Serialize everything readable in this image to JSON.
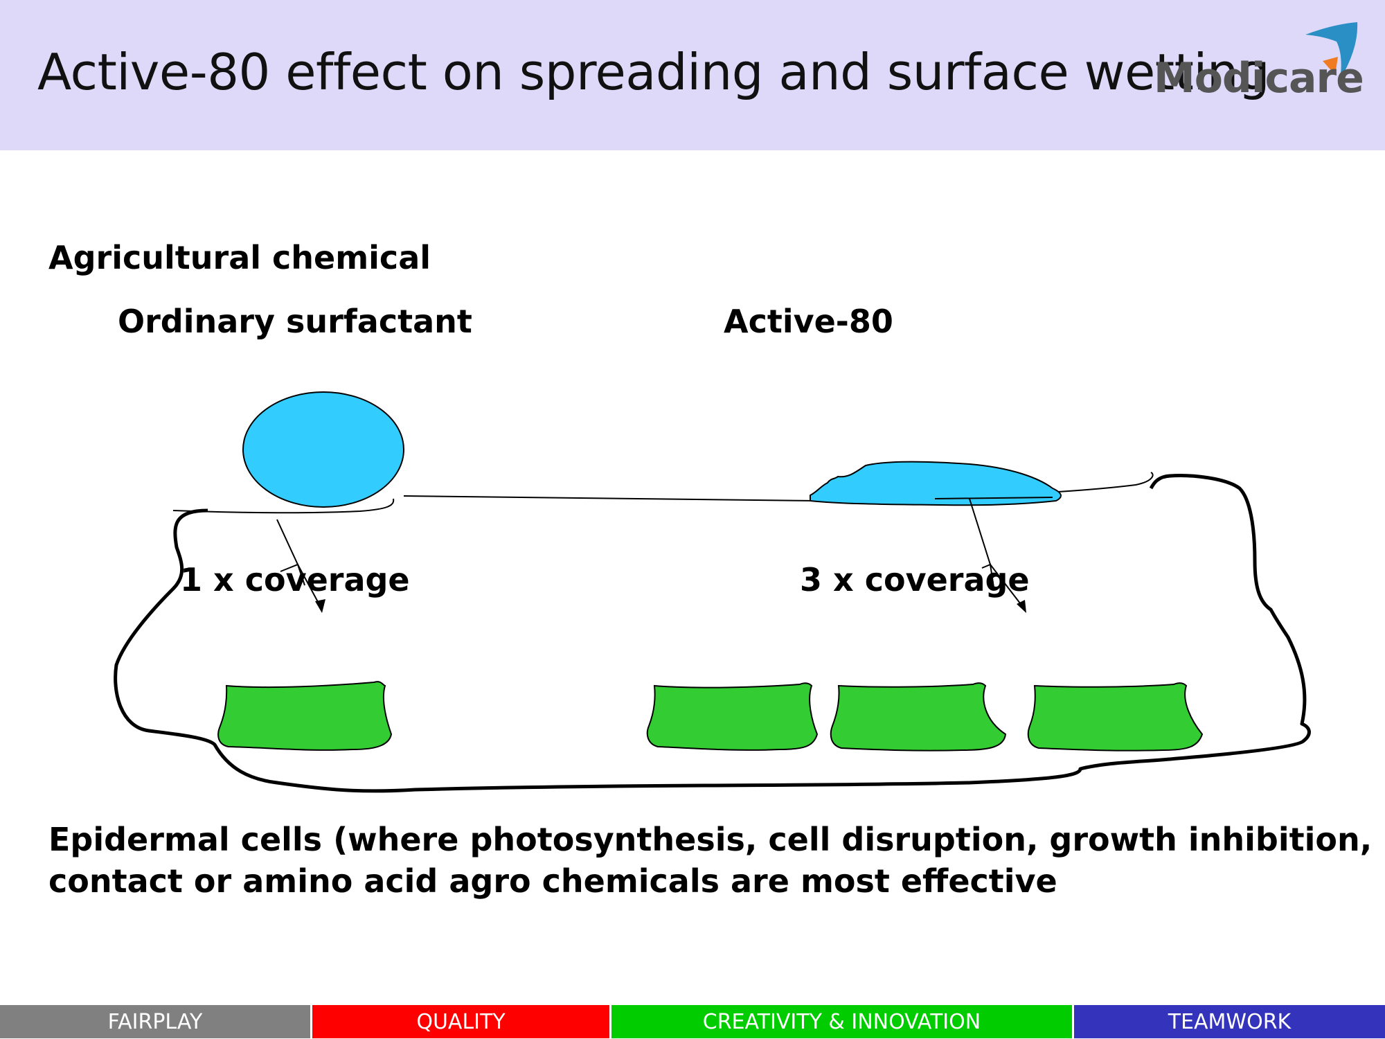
{
  "header": {
    "title": "Active-80 effect on spreading and surface wetting",
    "logo_text": "Modicare"
  },
  "diagram": {
    "heading": "Agricultural chemical",
    "left_label": "Ordinary surfactant",
    "right_label": "Active-80",
    "left_coverage": "1 x coverage",
    "right_coverage": "3 x coverage",
    "caption_line1": "Epidermal cells (where photosynthesis, cell disruption, growth inhibition,",
    "caption_line2": "contact or amino acid agro chemicals are most effective",
    "colors": {
      "droplet": "#33ccff",
      "cell": "#33cc33",
      "outline": "#000000"
    }
  },
  "footer": {
    "items": [
      {
        "label": "FAIRPLAY",
        "color": "#808080"
      },
      {
        "label": "QUALITY",
        "color": "#ff0000"
      },
      {
        "label": "CREATIVITY & INNOVATION",
        "color": "#00cc00"
      },
      {
        "label": "TEAMWORK",
        "color": "#3333bb"
      }
    ]
  }
}
